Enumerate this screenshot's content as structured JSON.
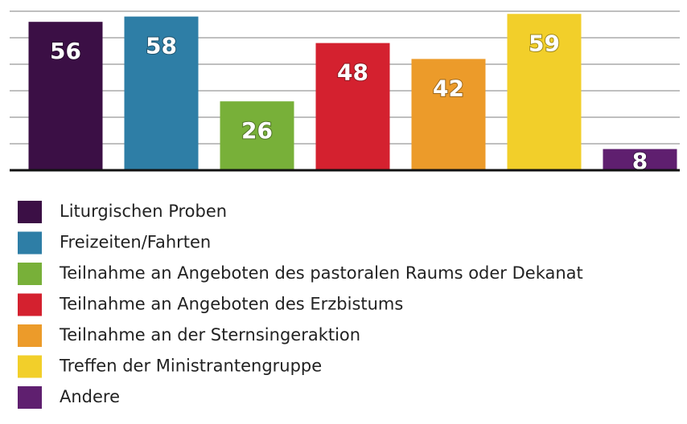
{
  "chart_data": {
    "type": "bar",
    "categories": [
      "Liturgischen Proben",
      "Freizeiten/Fahrten",
      "Teilnahme an Angeboten des pastoralen Raums oder Dekanat",
      "Teilnahme an Angeboten des Erzbistums",
      "Teilnahme an der Sternsingeraktion",
      "Treffen der Ministrantengruppe",
      "Andere"
    ],
    "values": [
      56,
      58,
      26,
      48,
      42,
      59,
      8
    ],
    "colors": [
      "#3b0f45",
      "#2e7ea6",
      "#78b039",
      "#d4212f",
      "#ec9b2a",
      "#f2cf2a",
      "#5f1f6f"
    ],
    "ylim": [
      0,
      60
    ],
    "yticks": [
      0,
      10,
      20,
      30,
      40,
      50,
      60
    ],
    "grid": true
  }
}
